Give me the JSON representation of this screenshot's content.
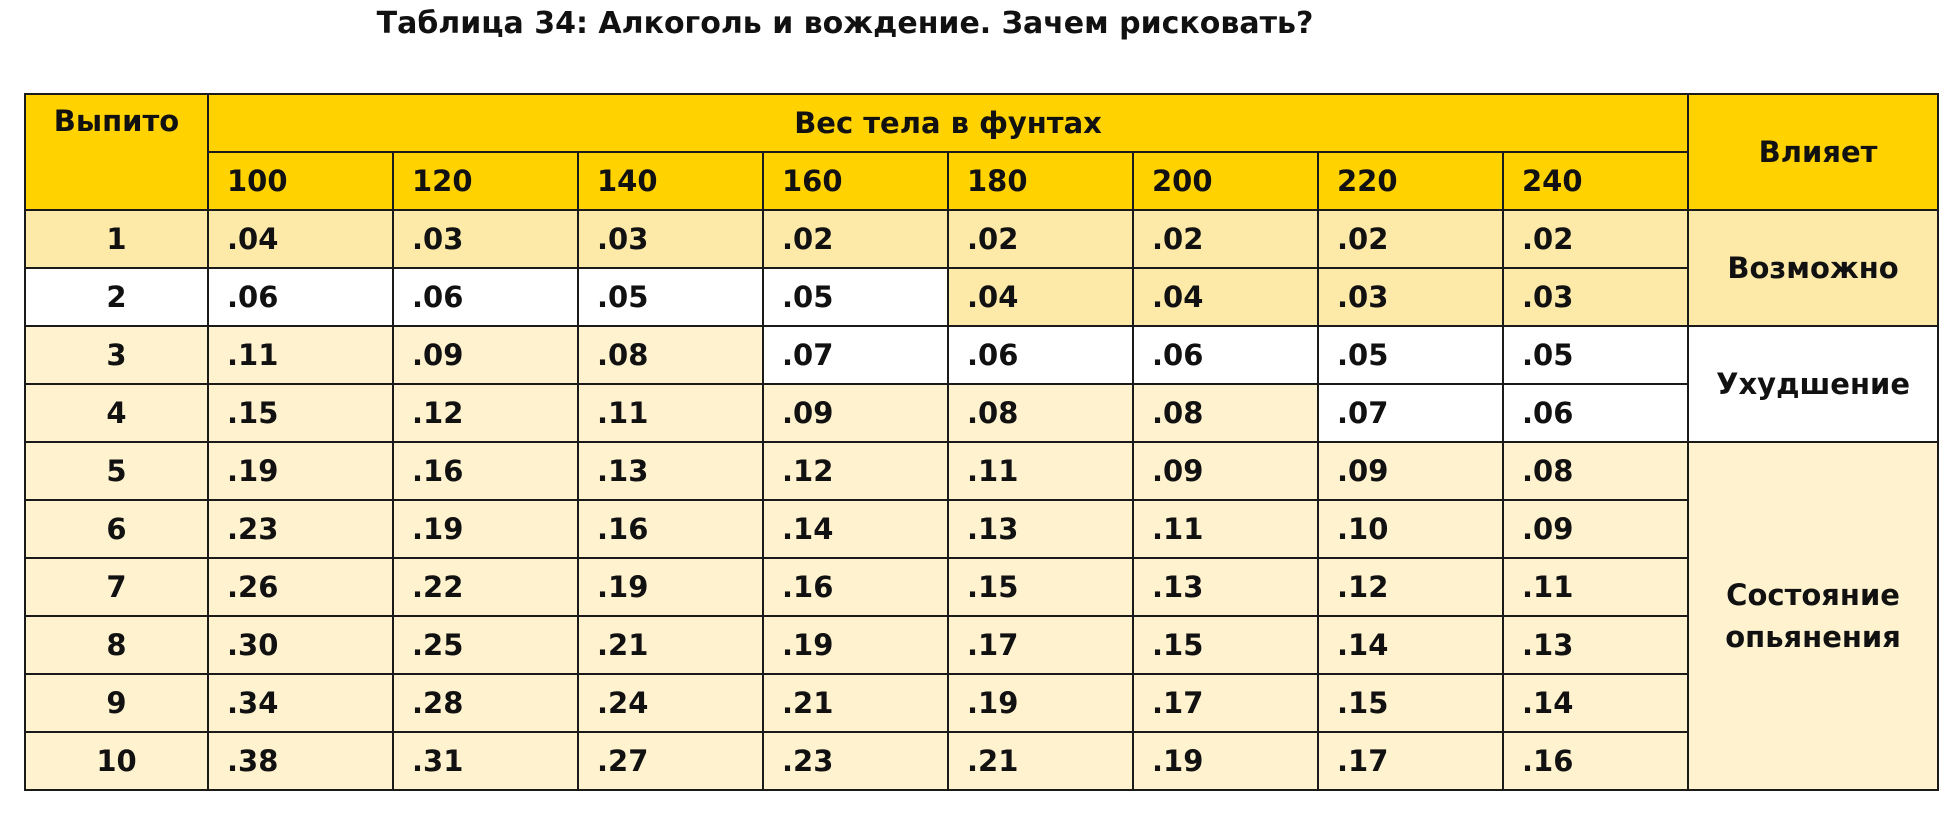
{
  "caption": "Таблица 34: Алкоголь и вождение. Зачем рисковать?",
  "table": {
    "drinks_header": "Выпито",
    "weight_header": "Вес тела в фунтах",
    "effect_header": "Влияет",
    "weights": [
      "100",
      "120",
      "140",
      "160",
      "180",
      "200",
      "220",
      "240"
    ],
    "rows": [
      {
        "drinks": "1",
        "values": [
          ".04",
          ".03",
          ".03",
          ".02",
          ".02",
          ".02",
          ".02",
          ".02"
        ]
      },
      {
        "drinks": "2",
        "values": [
          ".06",
          ".06",
          ".05",
          ".05",
          ".04",
          ".04",
          ".03",
          ".03"
        ]
      },
      {
        "drinks": "3",
        "values": [
          ".11",
          ".09",
          ".08",
          ".07",
          ".06",
          ".06",
          ".05",
          ".05"
        ]
      },
      {
        "drinks": "4",
        "values": [
          ".15",
          ".12",
          ".11",
          ".09",
          ".08",
          ".08",
          ".07",
          ".06"
        ]
      },
      {
        "drinks": "5",
        "values": [
          ".19",
          ".16",
          ".13",
          ".12",
          ".11",
          ".09",
          ".09",
          ".08"
        ]
      },
      {
        "drinks": "6",
        "values": [
          ".23",
          ".19",
          ".16",
          ".14",
          ".13",
          ".11",
          ".10",
          ".09"
        ]
      },
      {
        "drinks": "7",
        "values": [
          ".26",
          ".22",
          ".19",
          ".16",
          ".15",
          ".13",
          ".12",
          ".11"
        ]
      },
      {
        "drinks": "8",
        "values": [
          ".30",
          ".25",
          ".21",
          ".19",
          ".17",
          ".15",
          ".14",
          ".13"
        ]
      },
      {
        "drinks": "9",
        "values": [
          ".34",
          ".28",
          ".24",
          ".21",
          ".19",
          ".17",
          ".15",
          ".14"
        ]
      },
      {
        "drinks": "10",
        "values": [
          ".38",
          ".31",
          ".27",
          ".23",
          ".21",
          ".19",
          ".17",
          ".16"
        ]
      }
    ],
    "effects": [
      {
        "label": "Возможно"
      },
      {
        "label": "Ухудшение"
      },
      {
        "label": "Состояние опьянения"
      }
    ]
  },
  "colors": {
    "header": "#ffd200",
    "zone_possible": "#fde9a8",
    "zone_impaired": "#ffffff",
    "zone_intoxicated": "#fff2cf",
    "border": "#1a1a1a"
  }
}
